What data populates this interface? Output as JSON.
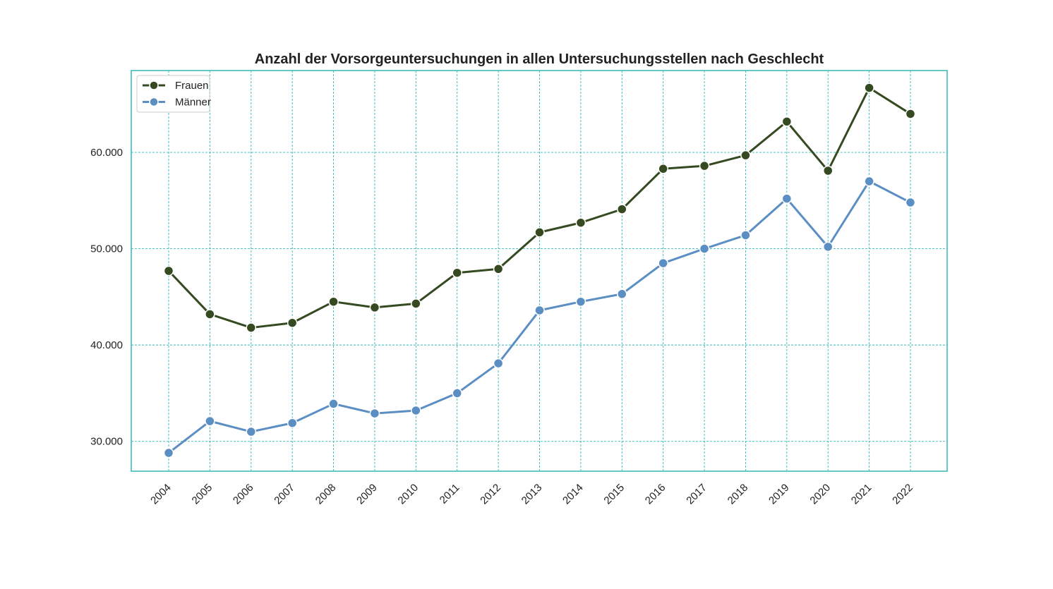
{
  "chart_data": {
    "type": "line",
    "title": "Anzahl der Vorsorgeuntersuchungen in allen Untersuchungsstellen nach Geschlecht",
    "xlabel": "",
    "ylabel": "",
    "categories": [
      "2004",
      "2005",
      "2006",
      "2007",
      "2008",
      "2009",
      "2010",
      "2011",
      "2012",
      "2013",
      "2014",
      "2015",
      "2016",
      "2017",
      "2018",
      "2019",
      "2020",
      "2021",
      "2022"
    ],
    "series": [
      {
        "name": "Frauen",
        "color": "#354a21",
        "values": [
          47700,
          43200,
          41800,
          42300,
          44500,
          43900,
          44300,
          47500,
          47900,
          51700,
          52700,
          54100,
          58300,
          58600,
          59700,
          63200,
          58100,
          66700,
          64000
        ]
      },
      {
        "name": "Männer",
        "color": "#5b8fc4",
        "values": [
          28800,
          32100,
          31000,
          31900,
          33900,
          32900,
          33200,
          35000,
          38100,
          43600,
          44500,
          45300,
          48500,
          50000,
          51400,
          55200,
          50200,
          57000,
          54800
        ]
      }
    ],
    "yticks": [
      30000,
      40000,
      50000,
      60000
    ],
    "ytick_labels": [
      "30.000",
      "40.000",
      "50.000",
      "60.000"
    ],
    "ylim": [
      26900,
      68500
    ],
    "grid": true,
    "grid_color": "#35b8b8",
    "frame_color": "#35b8b8",
    "legend_position": "top-left"
  }
}
